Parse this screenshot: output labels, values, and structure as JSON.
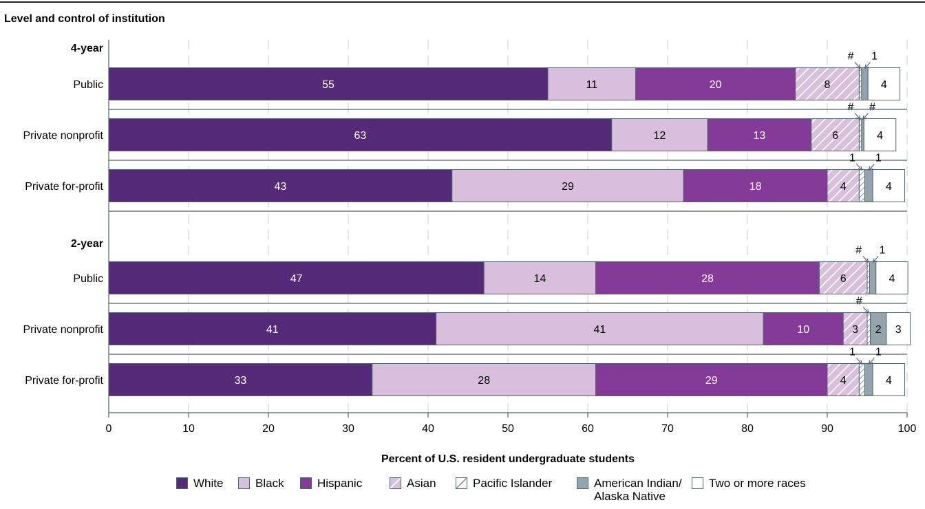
{
  "chart_data": {
    "type": "bar",
    "orientation": "horizontal",
    "stacked": true,
    "title": "Level and control of institution",
    "xlabel": "Percent of U.S. resident undergraduate students",
    "xlim": [
      0,
      100
    ],
    "xticks": [
      0,
      10,
      20,
      30,
      40,
      50,
      60,
      70,
      80,
      90,
      100
    ],
    "grid": "vertical dashed",
    "groups": [
      {
        "name": "4-year",
        "rows": [
          {
            "label": "Public",
            "values": [
              55,
              11,
              20,
              8,
              0.3,
              0.8,
              4
            ],
            "labels": [
              "55",
              "11",
              "20",
              "8",
              "#",
              "1",
              "4"
            ]
          },
          {
            "label": "Private nonprofit",
            "values": [
              63,
              12,
              13,
              6,
              0.3,
              0.3,
              4
            ],
            "labels": [
              "63",
              "12",
              "13",
              "6",
              "#",
              "#",
              "4"
            ]
          },
          {
            "label": "Private for-profit",
            "values": [
              43,
              29,
              18,
              4,
              0.7,
              1,
              4
            ],
            "labels": [
              "43",
              "29",
              "18",
              "4",
              "1",
              "1",
              "4"
            ]
          }
        ]
      },
      {
        "name": "2-year",
        "rows": [
          {
            "label": "Public",
            "values": [
              47,
              14,
              28,
              6,
              0.3,
              0.8,
              4
            ],
            "labels": [
              "47",
              "14",
              "28",
              "6",
              "#",
              "1",
              "4"
            ]
          },
          {
            "label": "Private nonprofit",
            "values": [
              41,
              41,
              10,
              3,
              0.4,
              2,
              3
            ],
            "labels": [
              "41",
              "41",
              "10",
              "3",
              "#",
              "2",
              "3"
            ]
          },
          {
            "label": "Private for-profit",
            "values": [
              33,
              28,
              29,
              4,
              0.7,
              1,
              4
            ],
            "labels": [
              "33",
              "28",
              "29",
              "4",
              "1",
              "1",
              "4"
            ]
          }
        ]
      }
    ],
    "series": [
      {
        "name": "White",
        "color": "#552a78",
        "pattern": "solid",
        "text_color": "#ffffff"
      },
      {
        "name": "Black",
        "color": "#d8bfdc",
        "pattern": "solid",
        "text_color": "#000000"
      },
      {
        "name": "Hispanic",
        "color": "#843b98",
        "pattern": "solid",
        "text_color": "#ffffff"
      },
      {
        "name": "Asian",
        "color": "#d8bfdc",
        "pattern": "diagonal",
        "text_color": "#000000"
      },
      {
        "name": "Pacific Islander",
        "color": "#ffffff",
        "pattern": "diagonal",
        "text_color": "#000000"
      },
      {
        "name": "American Indian/ Alaska Native",
        "color": "#94a4ac",
        "pattern": "solid",
        "text_color": "#000000"
      },
      {
        "name": "Two or more races",
        "color": "#ffffff",
        "pattern": "solid",
        "text_color": "#000000"
      }
    ],
    "legend": [
      {
        "lines": [
          "White"
        ]
      },
      {
        "lines": [
          "Black"
        ]
      },
      {
        "lines": [
          "Hispanic"
        ]
      },
      {
        "lines": [
          "Asian"
        ]
      },
      {
        "lines": [
          "Pacific Islander"
        ]
      },
      {
        "lines": [
          "American Indian/",
          "Alaska Native"
        ]
      },
      {
        "lines": [
          "Two or more races"
        ]
      }
    ],
    "legend_placement": "bottom",
    "colors": {
      "bar_border": "#4f6470",
      "axis": "#4f6470",
      "grid": "#c8ccd0",
      "arrow": "#4f6470"
    }
  }
}
